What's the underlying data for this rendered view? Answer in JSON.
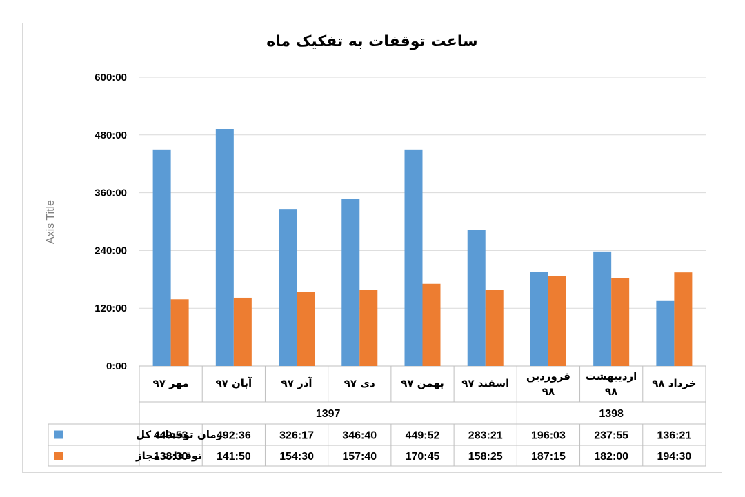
{
  "chart_data": {
    "type": "bar",
    "title": "ساعت توقفات به تفکیک ماه",
    "ylabel": "Axis Title",
    "ylim": [
      0,
      600
    ],
    "yticks": [
      "0:00",
      "120:00",
      "240:00",
      "360:00",
      "480:00",
      "600:00"
    ],
    "ytick_values": [
      0,
      120,
      240,
      360,
      480,
      600
    ],
    "categories": [
      [
        "مهر ۹۷"
      ],
      [
        "آبان ۹۷"
      ],
      [
        "آذر ۹۷"
      ],
      [
        "دی ۹۷"
      ],
      [
        "بهمن ۹۷"
      ],
      [
        "اسفند ۹۷"
      ],
      [
        "فروردین",
        "۹۸"
      ],
      [
        "اردیبهشت",
        "۹۸"
      ],
      [
        "خرداد ۹۸"
      ]
    ],
    "groups": [
      {
        "label": "1397",
        "count": 6
      },
      {
        "label": "1398",
        "count": 3
      }
    ],
    "series": [
      {
        "name": "زمان توقفات کل",
        "color": "#5b9bd5",
        "labels": [
          "449:53",
          "492:36",
          "326:17",
          "346:40",
          "449:52",
          "283:21",
          "196:03",
          "237:55",
          "136:21"
        ],
        "values": [
          449.88,
          492.6,
          326.28,
          346.67,
          449.87,
          283.35,
          196.05,
          237.92,
          136.35
        ]
      },
      {
        "name": "توقفات مجاز",
        "color": "#ed7d31",
        "labels": [
          "138:30",
          "141:50",
          "154:30",
          "157:40",
          "170:45",
          "158:25",
          "187:15",
          "182:00",
          "194:30"
        ],
        "values": [
          138.5,
          141.83,
          154.5,
          157.67,
          170.75,
          158.42,
          187.25,
          182.0,
          194.5
        ]
      }
    ],
    "grid": true,
    "legend": "data-table"
  }
}
